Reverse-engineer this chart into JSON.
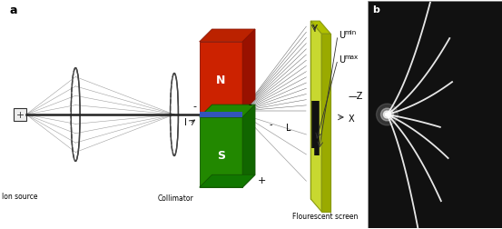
{
  "fig_label_a": "a",
  "fig_label_b": "b",
  "ion_source_label": "Ion source",
  "collimator_label": "Collimator",
  "screen_label": "Flourescent screen",
  "label_N": "N",
  "label_S": "S",
  "label_L": "L",
  "label_I": "I",
  "label_minus_top": "-",
  "label_plus_bottom": "+",
  "label_minus_beam": "-",
  "label_Y": "Y",
  "label_X": "X",
  "label_Z": "Z",
  "label_Umin": "U",
  "label_Umin_sub": "min",
  "label_Umax": "U",
  "label_Umax_sub": "max",
  "bg_color": "#ffffff",
  "screen_color": "#c8d830",
  "magnet_N_color": "#cc2200",
  "magnet_S_color": "#228800",
  "magnet_blue_color": "#3355bb",
  "beam_color": "#555555",
  "disk_edge_color": "#444444",
  "parabola_color": "#333333",
  "label_color": "#000000",
  "photo_bg": "#111111"
}
